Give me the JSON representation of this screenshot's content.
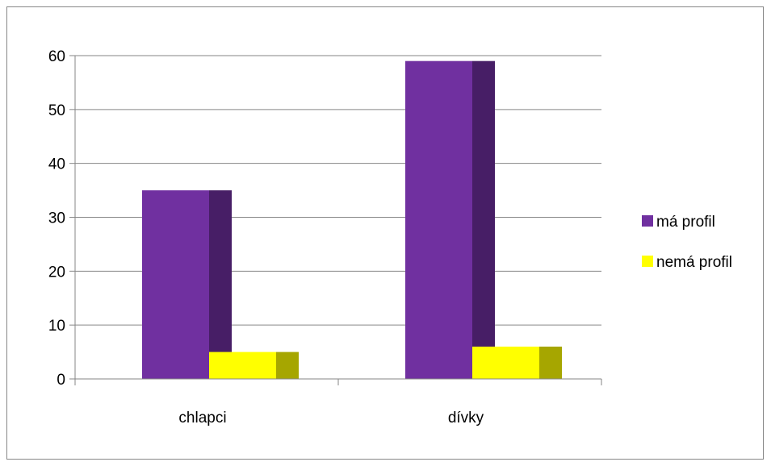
{
  "chart_data": {
    "type": "bar",
    "categories": [
      "chlapci",
      "dívky"
    ],
    "series": [
      {
        "name": "má profil",
        "values": [
          35,
          59
        ],
        "color": "#7030A0",
        "side_color": "#471E66"
      },
      {
        "name": "nemá profil",
        "values": [
          5,
          6
        ],
        "color": "#FFFF00",
        "side_color": "#A6A600"
      }
    ],
    "ylim": [
      0,
      60
    ],
    "yticks": [
      0,
      10,
      20,
      30,
      40,
      50,
      60
    ],
    "grid": true,
    "legend": "right",
    "title": "",
    "xlabel": "",
    "ylabel": ""
  }
}
